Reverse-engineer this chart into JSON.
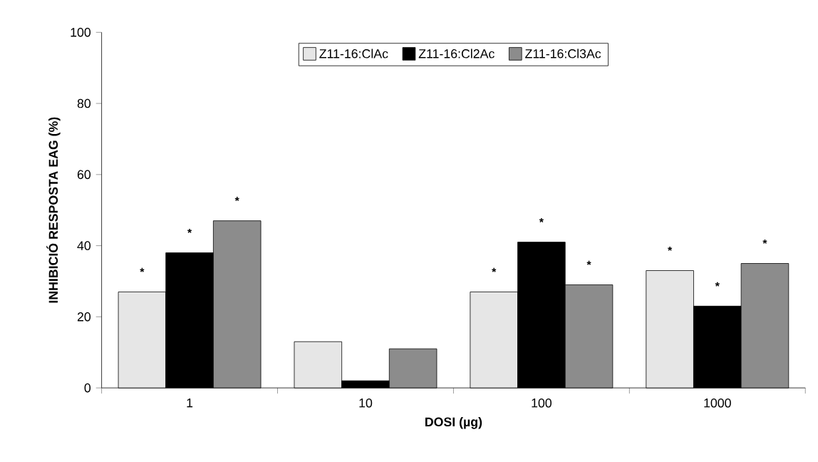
{
  "chart_data": {
    "type": "bar",
    "xlabel": "DOSI (µg)",
    "ylabel": "INHIBICIÓ RESPOSTA EAG (%)",
    "categories": [
      "1",
      "10",
      "100",
      "1000"
    ],
    "series": [
      {
        "name": "Z11-16:ClAc",
        "color": "#e6e6e6",
        "values": [
          27,
          13,
          27,
          33
        ],
        "value_labels": [
          "*",
          null,
          "*",
          "*"
        ]
      },
      {
        "name": "Z11-16:Cl2Ac",
        "color": "#000000",
        "values": [
          38,
          2,
          41,
          23
        ],
        "value_labels": [
          "*",
          null,
          "*",
          "*"
        ]
      },
      {
        "name": "Z11-16:Cl3Ac",
        "color": "#8c8c8c",
        "values": [
          47,
          11,
          29,
          35
        ],
        "value_labels": [
          "*",
          null,
          "*",
          "*"
        ]
      }
    ],
    "ylim": [
      0,
      100
    ],
    "yticks": [
      0,
      20,
      40,
      60,
      80,
      100
    ],
    "legend": "top",
    "grid": false
  }
}
